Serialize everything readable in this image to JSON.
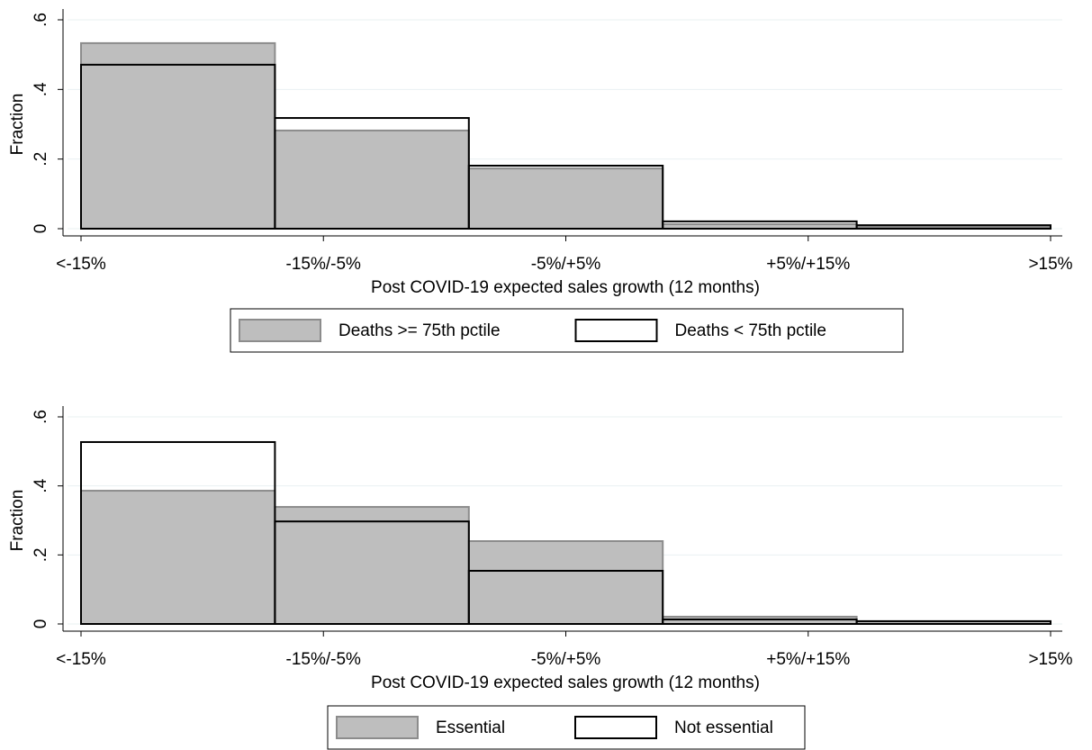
{
  "chart_data": [
    {
      "type": "histogram",
      "xlabel": "Post COVID-19 expected sales growth (12 months)",
      "ylabel": "Fraction",
      "bins": [
        1,
        1.8,
        2.6,
        3.4,
        4.2,
        5
      ],
      "series": [
        {
          "name": "Deaths >= 75th pctile",
          "color": "#bebebe",
          "values": [
            0.533,
            0.282,
            0.173,
            0.013,
            0.005
          ]
        },
        {
          "name": "Deaths < 75th pctile",
          "color": "none",
          "values": [
            0.471,
            0.318,
            0.181,
            0.021,
            0.01
          ]
        }
      ],
      "xlim": [
        1,
        5
      ],
      "xticks": [
        {
          "value": 1,
          "label": "<-15%"
        },
        {
          "value": 2,
          "label": "-15%/-5%"
        },
        {
          "value": 3,
          "label": "-5%/+5%"
        },
        {
          "value": 4,
          "label": "+5%/+15%"
        },
        {
          "value": 5,
          "label": ">15%"
        }
      ],
      "ylim": [
        0,
        0.6
      ],
      "yticks": [
        0,
        {
          "value": 0.2,
          "label": ".2"
        },
        {
          "value": 0.4,
          "label": ".4"
        },
        {
          "value": 0.6,
          "label": ".6"
        }
      ],
      "grid": true,
      "legend": "bottom"
    },
    {
      "type": "histogram",
      "xlabel": "Post COVID-19 expected sales growth (12 months)",
      "ylabel": "Fraction",
      "bins": [
        1,
        1.8,
        2.6,
        3.4,
        4.2,
        5
      ],
      "series": [
        {
          "name": "Essential",
          "color": "#bebebe",
          "values": [
            0.386,
            0.339,
            0.24,
            0.021,
            0.008
          ]
        },
        {
          "name": "Not essential",
          "color": "none",
          "values": [
            0.527,
            0.297,
            0.154,
            0.013,
            0.008
          ]
        }
      ],
      "xlim": [
        1,
        5
      ],
      "xticks": [
        {
          "value": 1,
          "label": "<-15%"
        },
        {
          "value": 2,
          "label": "-15%/-5%"
        },
        {
          "value": 3,
          "label": "-5%/+5%"
        },
        {
          "value": 4,
          "label": "+5%/+15%"
        },
        {
          "value": 5,
          "label": ">15%"
        }
      ],
      "ylim": [
        0,
        0.6
      ],
      "yticks": [
        0,
        {
          "value": 0.2,
          "label": ".2"
        },
        {
          "value": 0.4,
          "label": ".4"
        },
        {
          "value": 0.6,
          "label": ".6"
        }
      ],
      "grid": true,
      "legend": "bottom"
    }
  ]
}
